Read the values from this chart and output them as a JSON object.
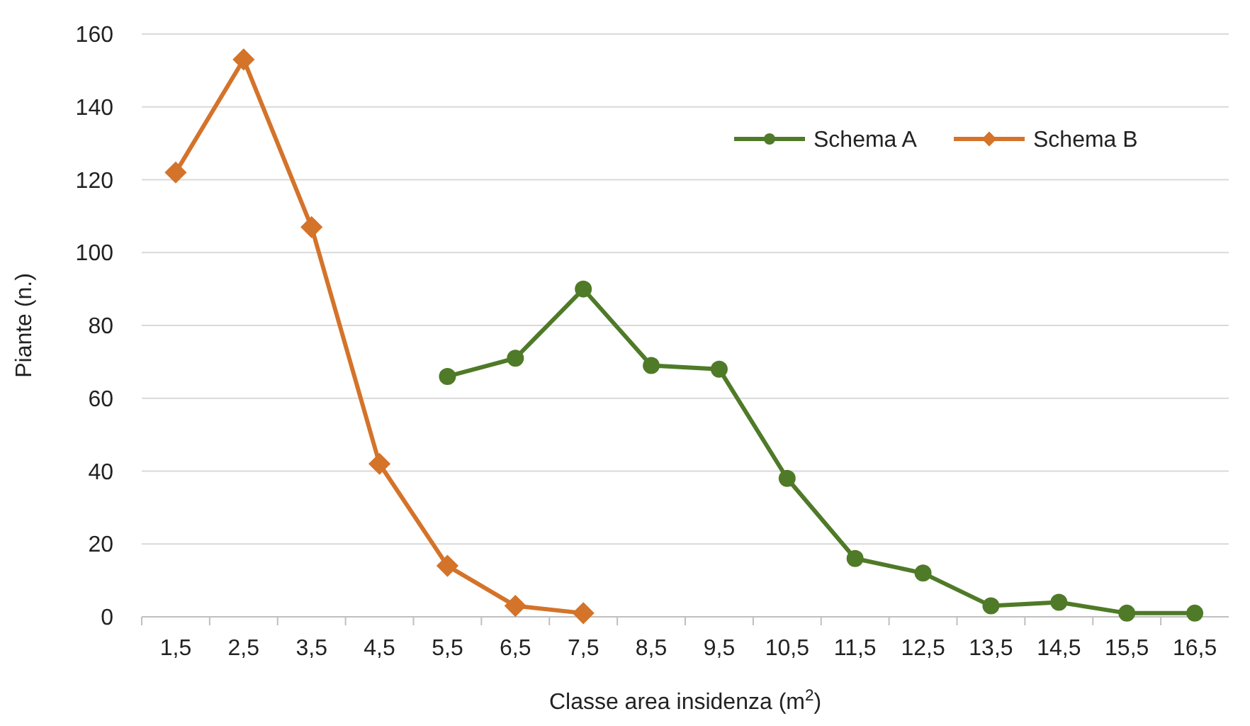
{
  "chart_data": {
    "type": "line",
    "xlabel": "Classe area insidenza (m$^{2}$)",
    "ylabel": "Piante (n.)",
    "categories": [
      "1,5",
      "2,5",
      "3,5",
      "4,5",
      "5,5",
      "6,5",
      "7,5",
      "8,5",
      "9,5",
      "10,5",
      "11,5",
      "12,5",
      "13,5",
      "14,5",
      "15,5",
      "16,5"
    ],
    "series": [
      {
        "name": "Schema A",
        "color": "#4f7a28",
        "marker": "circle",
        "values": [
          null,
          null,
          null,
          null,
          66,
          71,
          90,
          69,
          68,
          38,
          16,
          12,
          3,
          4,
          1,
          1
        ]
      },
      {
        "name": "Schema B",
        "color": "#d4732a",
        "marker": "diamond",
        "values": [
          122,
          153,
          107,
          42,
          14,
          3,
          1,
          null,
          null,
          null,
          null,
          null,
          null,
          null,
          null,
          null
        ]
      }
    ],
    "ylim": [
      0,
      160
    ],
    "yticks": [
      0,
      20,
      40,
      60,
      80,
      100,
      120,
      140,
      160
    ],
    "grid": "y",
    "legend": "top right"
  }
}
